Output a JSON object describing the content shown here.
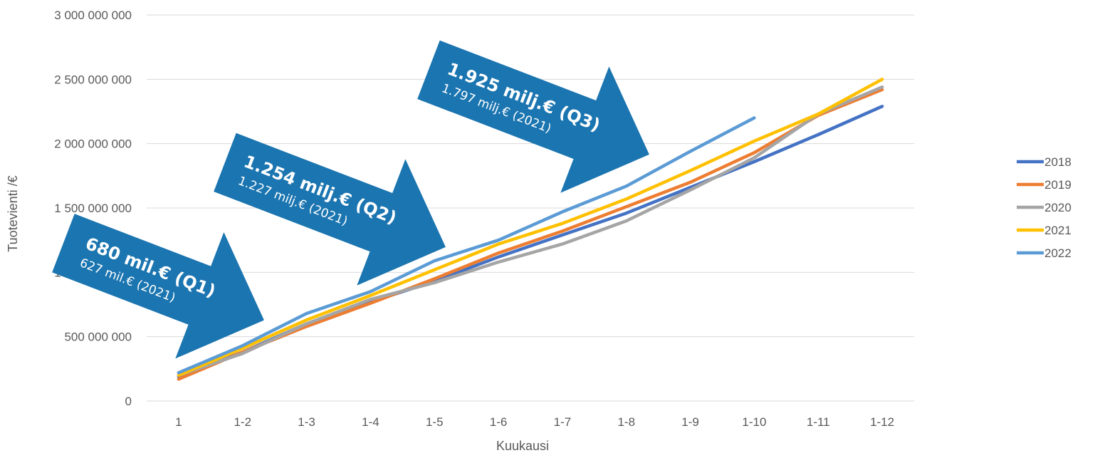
{
  "chart_data": {
    "type": "line",
    "xlabel": "Kuukausi",
    "ylabel": "Tuotevienti /€",
    "categories": [
      "1",
      "1-2",
      "1-3",
      "1-4",
      "1-5",
      "1-6",
      "1-7",
      "1-8",
      "1-9",
      "1-10",
      "1-11",
      "1-12"
    ],
    "ylim": [
      0,
      3000000000
    ],
    "y_ticks": [
      {
        "value": 0,
        "label": "0"
      },
      {
        "value": 500000000,
        "label": "500 000 000"
      },
      {
        "value": 1000000000,
        "label": "1 000 000 000"
      },
      {
        "value": 1500000000,
        "label": "1 500 000 000"
      },
      {
        "value": 2000000000,
        "label": "2 000 000 000"
      },
      {
        "value": 2500000000,
        "label": "2 500 000 000"
      },
      {
        "value": 3000000000,
        "label": "3 000 000 000"
      }
    ],
    "grid": "horizontal",
    "legend_position": "right",
    "series": [
      {
        "name": "2018",
        "color": "#4472C4",
        "values": [
          190000000,
          380000000,
          600000000,
          770000000,
          930000000,
          1120000000,
          1290000000,
          1460000000,
          1660000000,
          1860000000,
          2070000000,
          2290000000
        ]
      },
      {
        "name": "2019",
        "color": "#ED7D31",
        "values": [
          170000000,
          380000000,
          580000000,
          760000000,
          950000000,
          1150000000,
          1320000000,
          1510000000,
          1700000000,
          1930000000,
          2220000000,
          2420000000
        ]
      },
      {
        "name": "2020",
        "color": "#A5A5A5",
        "values": [
          200000000,
          370000000,
          600000000,
          790000000,
          920000000,
          1080000000,
          1220000000,
          1400000000,
          1640000000,
          1890000000,
          2230000000,
          2440000000
        ]
      },
      {
        "name": "2021",
        "color": "#FFC000",
        "values": [
          200000000,
          410000000,
          630000000,
          820000000,
          1020000000,
          1220000000,
          1380000000,
          1570000000,
          1790000000,
          2020000000,
          2230000000,
          2500000000
        ]
      },
      {
        "name": "2022",
        "color": "#5B9BD5",
        "values": [
          220000000,
          430000000,
          680000000,
          850000000,
          1090000000,
          1250000000,
          1470000000,
          1670000000,
          1940000000,
          2200000000,
          null,
          null
        ]
      }
    ],
    "annotations": [
      {
        "title": "680 mil.€ (Q1)",
        "subtitle": "627 mil.€ (2021)",
        "color": "#1B75B0"
      },
      {
        "title": "1.254 milj.€ (Q2)",
        "subtitle": "1.227 milj.€ (2021)",
        "color": "#1B75B0"
      },
      {
        "title": "1.925 milj.€ (Q3)",
        "subtitle": "1.797 milj.€ (2021)",
        "color": "#1B75B0"
      }
    ]
  }
}
